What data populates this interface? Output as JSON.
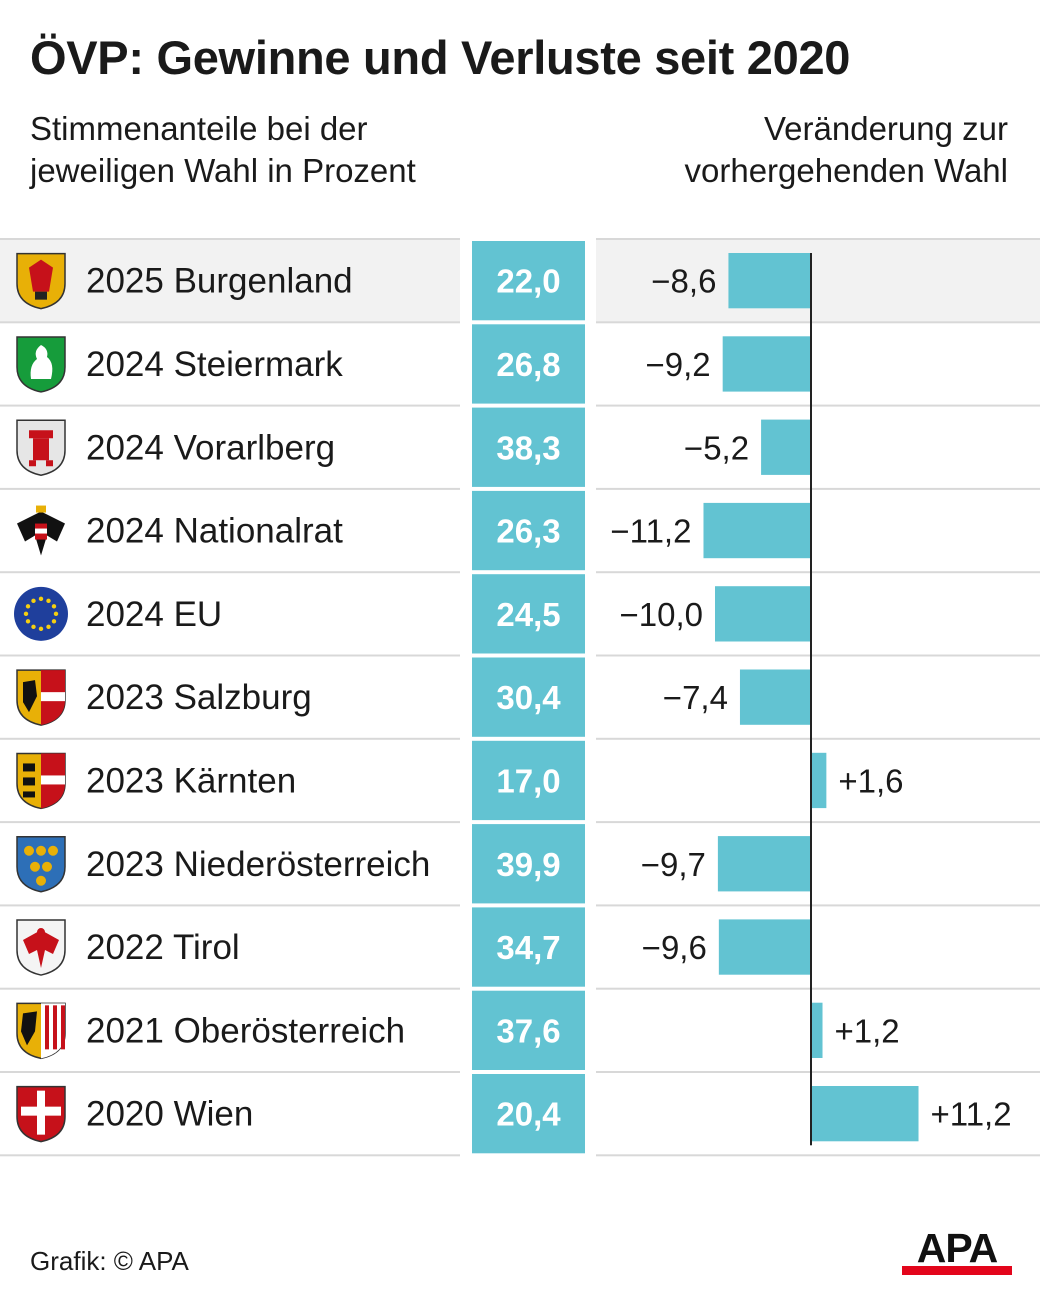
{
  "title": "ÖVP: Gewinne und Verluste seit 2020",
  "subtitle_left": [
    "Stimmenanteile bei der",
    "jeweiligen Wahl in Prozent"
  ],
  "subtitle_right": [
    "Veränderung zur",
    "vorhergehenden Wahl"
  ],
  "footer": "Grafik: © APA",
  "logo_text": "APA",
  "colors": {
    "bar": "#62c3d2",
    "highlight_row": "#f2f2f2",
    "separator": "#d8d8d8",
    "text": "#1a1a1a",
    "logo_red": "#e3051b"
  },
  "chart_data": {
    "type": "bar",
    "orientation": "horizontal",
    "categories": [
      "2025 Burgenland",
      "2024 Steiermark",
      "2024 Vorarlberg",
      "2024 Nationalrat",
      "2024 EU",
      "2023 Salzburg",
      "2023 Kärnten",
      "2023 Niederösterreich",
      "2022 Tirol",
      "2021 Oberösterreich",
      "2020 Wien"
    ],
    "icons": [
      "burgenland-coat-of-arms-icon",
      "steiermark-coat-of-arms-icon",
      "vorarlberg-coat-of-arms-icon",
      "austria-eagle-icon",
      "eu-flag-icon",
      "salzburg-coat-of-arms-icon",
      "kaernten-coat-of-arms-icon",
      "niederoesterreich-coat-of-arms-icon",
      "tirol-coat-of-arms-icon",
      "oberoesterreich-coat-of-arms-icon",
      "wien-coat-of-arms-icon"
    ],
    "vote_share_labels": [
      "22,0",
      "26,8",
      "38,3",
      "26,3",
      "24,5",
      "30,4",
      "17,0",
      "39,9",
      "34,7",
      "37,6",
      "20,4"
    ],
    "vote_share": [
      22.0,
      26.8,
      38.3,
      26.3,
      24.5,
      30.4,
      17.0,
      39.9,
      34.7,
      37.6,
      20.4
    ],
    "change": [
      -8.6,
      -9.2,
      -5.2,
      -11.2,
      -10.0,
      -7.4,
      1.6,
      -9.7,
      -9.6,
      1.2,
      11.2
    ],
    "change_labels": [
      "−8,6",
      "−9,2",
      "−5,2",
      "−11,2",
      "−10,0",
      "−7,4",
      "+1,6",
      "−9,7",
      "−9,6",
      "+1,2",
      "+11,2"
    ],
    "highlight_index": 0,
    "xlim": [
      -11.2,
      11.2
    ]
  }
}
